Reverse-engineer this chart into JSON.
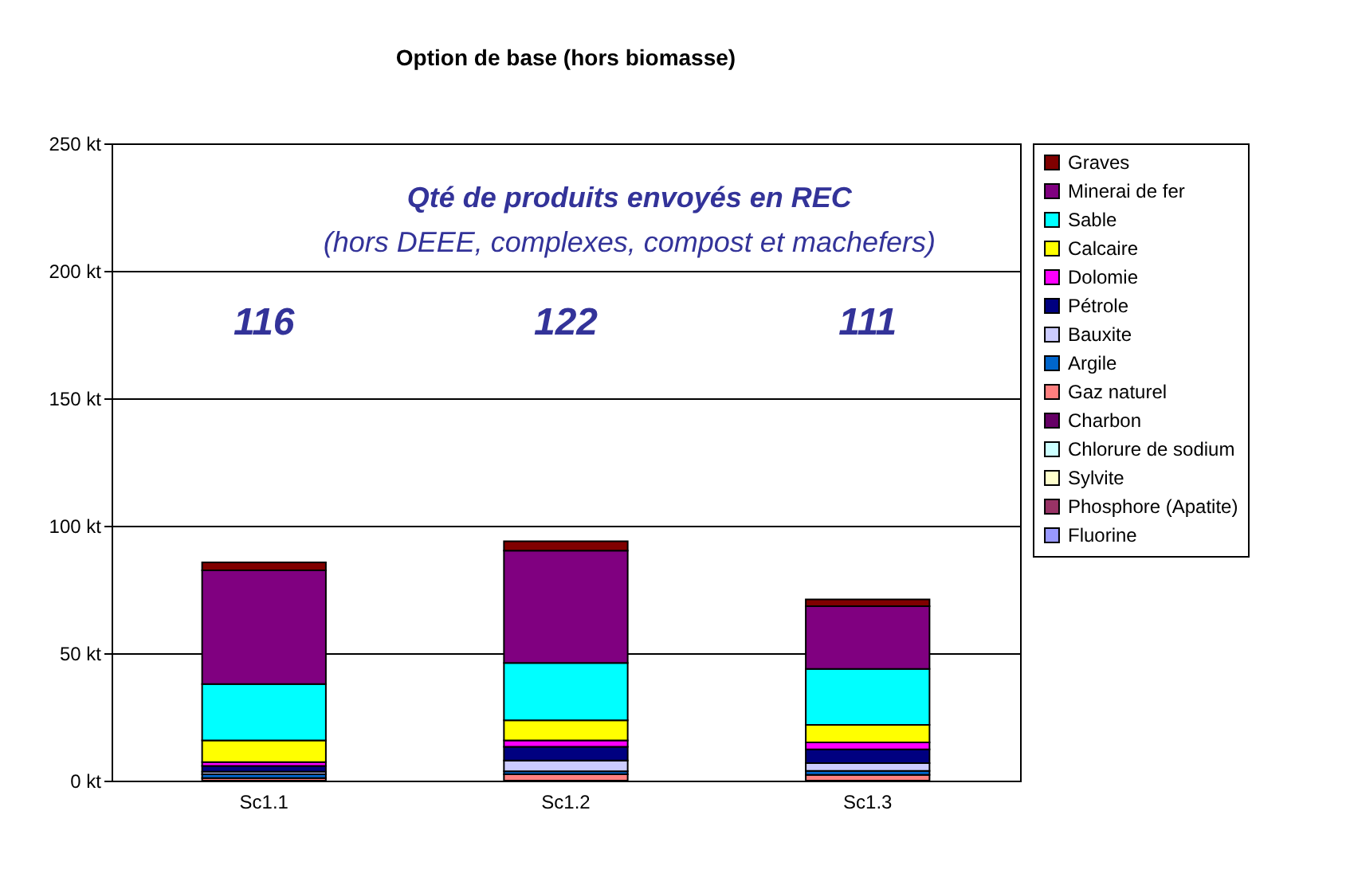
{
  "chart_data": {
    "type": "bar",
    "title": "Option de base (hors biomasse)",
    "stacked": true,
    "categories": [
      "Sc1.1",
      "Sc1.2",
      "Sc1.3"
    ],
    "series": [
      {
        "name": "Fluorine",
        "color": "#9999ff",
        "values": [
          null,
          null,
          null
        ]
      },
      {
        "name": "Phosphore (Apatite)",
        "color": "#993366",
        "values": [
          null,
          null,
          null
        ]
      },
      {
        "name": "Sylvite",
        "color": "#ffffcc",
        "values": [
          null,
          null,
          null
        ]
      },
      {
        "name": "Chlorure de sodium",
        "color": "#ccffff",
        "values": [
          null,
          null,
          null
        ]
      },
      {
        "name": "Charbon",
        "color": "#660066",
        "values": [
          null,
          null,
          null
        ]
      },
      {
        "name": "Gaz naturel",
        "color": "#ff8080",
        "values": [
          1,
          2.5,
          2.3
        ]
      },
      {
        "name": "Argile",
        "color": "#0066cc",
        "values": [
          1.5,
          1.2,
          1.5
        ]
      },
      {
        "name": "Bauxite",
        "color": "#ccccff",
        "values": [
          1,
          4.2,
          3.1
        ]
      },
      {
        "name": "Pétrole",
        "color": "#000080",
        "values": [
          2.3,
          5.4,
          5.4
        ]
      },
      {
        "name": "Dolomie",
        "color": "#ff00ff",
        "values": [
          1.5,
          2.5,
          2.7
        ]
      },
      {
        "name": "Calcaire",
        "color": "#ffff00",
        "values": [
          8.5,
          7.9,
          6.9
        ]
      },
      {
        "name": "Sable",
        "color": "#00ffff",
        "values": [
          22.1,
          22.5,
          21.9
        ]
      },
      {
        "name": "Minerai de fer",
        "color": "#800080",
        "values": [
          44.6,
          44,
          24.6
        ]
      },
      {
        "name": "Graves",
        "color": "#800000",
        "values": [
          3.1,
          3.7,
          2.7
        ]
      }
    ],
    "ylim": [
      0,
      250
    ],
    "yticks": [
      {
        "value": 0,
        "label": "0 kt"
      },
      {
        "value": 50,
        "label": "50 kt"
      },
      {
        "value": 100,
        "label": "100 kt"
      },
      {
        "value": 150,
        "label": "150 kt"
      },
      {
        "value": 200,
        "label": "200 kt"
      },
      {
        "value": 250,
        "label": "250 kt"
      }
    ],
    "grid": "y",
    "legend": "right",
    "annotations": [
      "Qté de produits envoyés en REC",
      "(hors DEEE, complexes, compost et machefers)",
      "116",
      "122",
      "111"
    ]
  }
}
